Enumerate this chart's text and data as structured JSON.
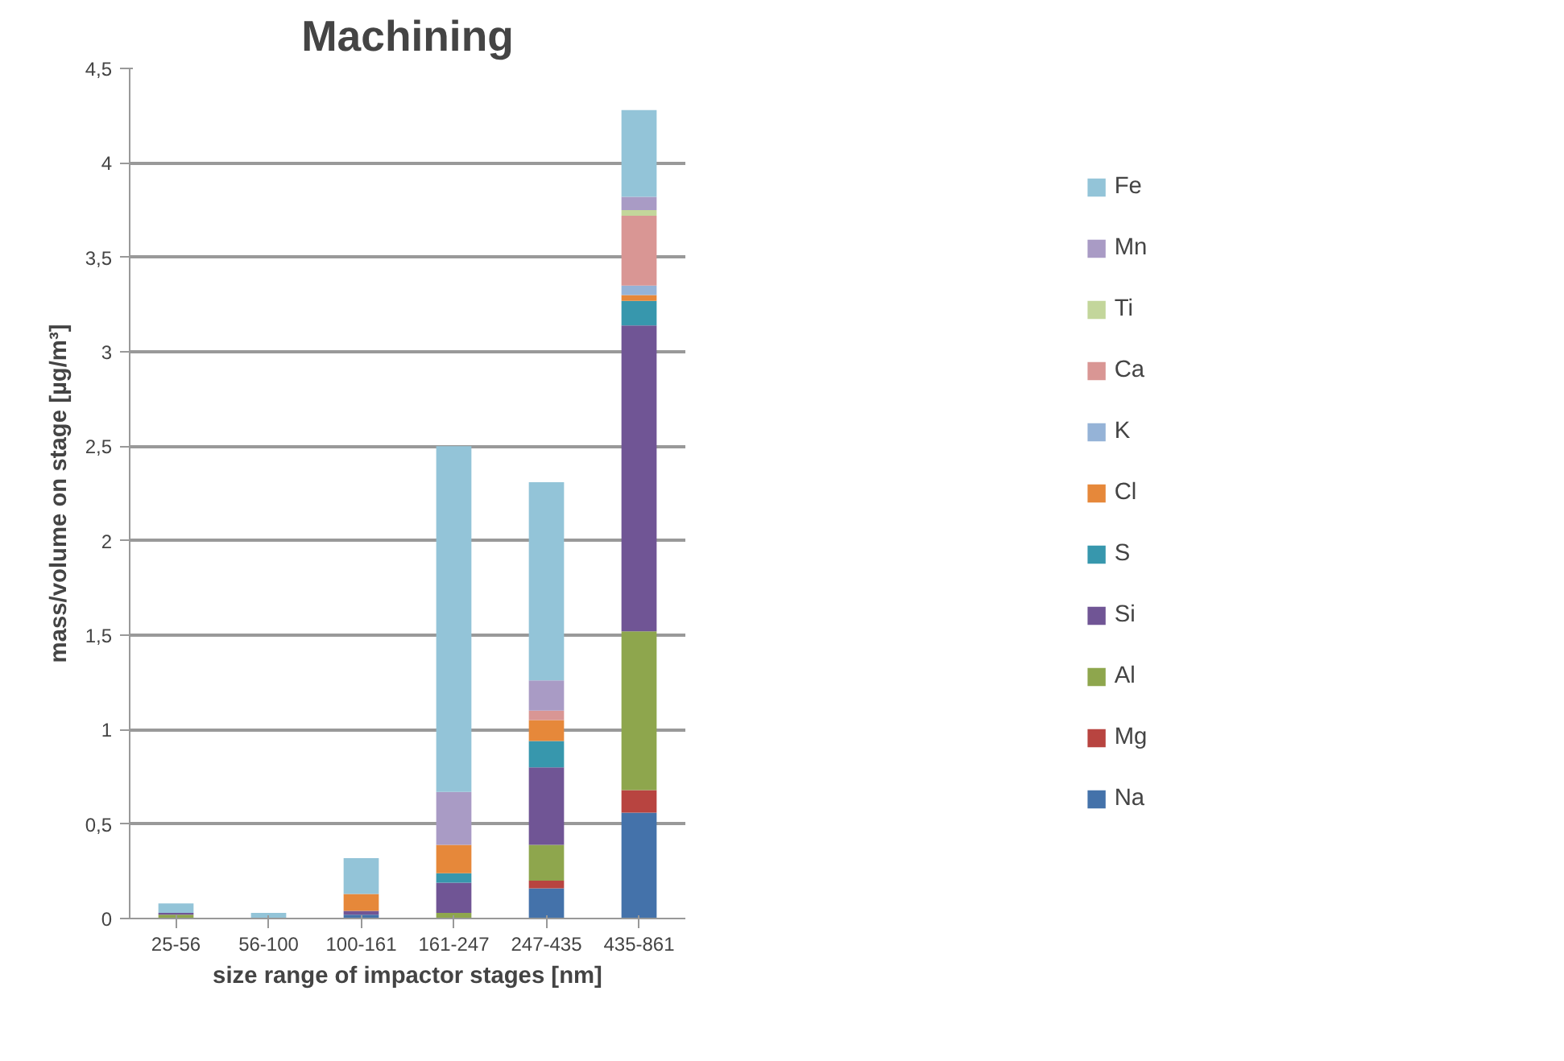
{
  "chart_data": {
    "type": "bar",
    "stacked": true,
    "title": "Machining",
    "xlabel": "size range of impactor stages [nm]",
    "ylabel": "mass/volume on stage [µg/m³]",
    "categories": [
      "25-56",
      "56-100",
      "100-161",
      "161-247",
      "247-435",
      "435-861"
    ],
    "ylim": [
      0,
      4.5
    ],
    "yticks": [
      0,
      {
        "value": 0.5,
        "label": "0,5"
      },
      1,
      {
        "value": 1.5,
        "label": "1,5"
      },
      2,
      {
        "value": 2.5,
        "label": "2,5"
      },
      3,
      {
        "value": 3.5,
        "label": "3,5"
      },
      4,
      {
        "value": 4.5,
        "label": "4,5"
      }
    ],
    "grid": "y",
    "legend": "right",
    "series": [
      {
        "name": "Na",
        "color": "#4472aa",
        "values": [
          null,
          0,
          0.02,
          null,
          0.16,
          0.56
        ]
      },
      {
        "name": "Mg",
        "color": "#b84440",
        "values": [
          0,
          0,
          0,
          0,
          0.04,
          0.12
        ]
      },
      {
        "name": "Al",
        "color": "#8ea64d",
        "values": [
          0.02,
          0,
          0,
          0.03,
          0.19,
          0.84
        ]
      },
      {
        "name": "Si",
        "color": "#705595",
        "values": [
          0.01,
          0,
          0.02,
          0.16,
          0.41,
          1.62
        ]
      },
      {
        "name": "S",
        "color": "#3797ad",
        "values": [
          0,
          0,
          0,
          0.05,
          0.14,
          0.13
        ]
      },
      {
        "name": "Cl",
        "color": "#e6883a",
        "values": [
          0,
          0,
          0.09,
          0.15,
          0.11,
          0.03
        ]
      },
      {
        "name": "K",
        "color": "#95b3d7",
        "values": [
          0,
          0,
          0,
          0,
          0,
          0.05
        ]
      },
      {
        "name": "Ca",
        "color": "#d99694",
        "values": [
          0,
          0,
          0,
          0,
          0.05,
          0.37
        ]
      },
      {
        "name": "Ti",
        "color": "#c3d69b",
        "values": [
          0,
          0,
          0,
          0,
          0,
          0.03
        ]
      },
      {
        "name": "Mn",
        "color": "#a99bc5",
        "values": [
          0,
          0,
          0,
          0.28,
          0.16,
          0.07
        ]
      },
      {
        "name": "Fe",
        "color": "#93c4d8",
        "values": [
          0.05,
          0.03,
          0.19,
          1.83,
          1.05,
          0.46
        ]
      }
    ]
  }
}
